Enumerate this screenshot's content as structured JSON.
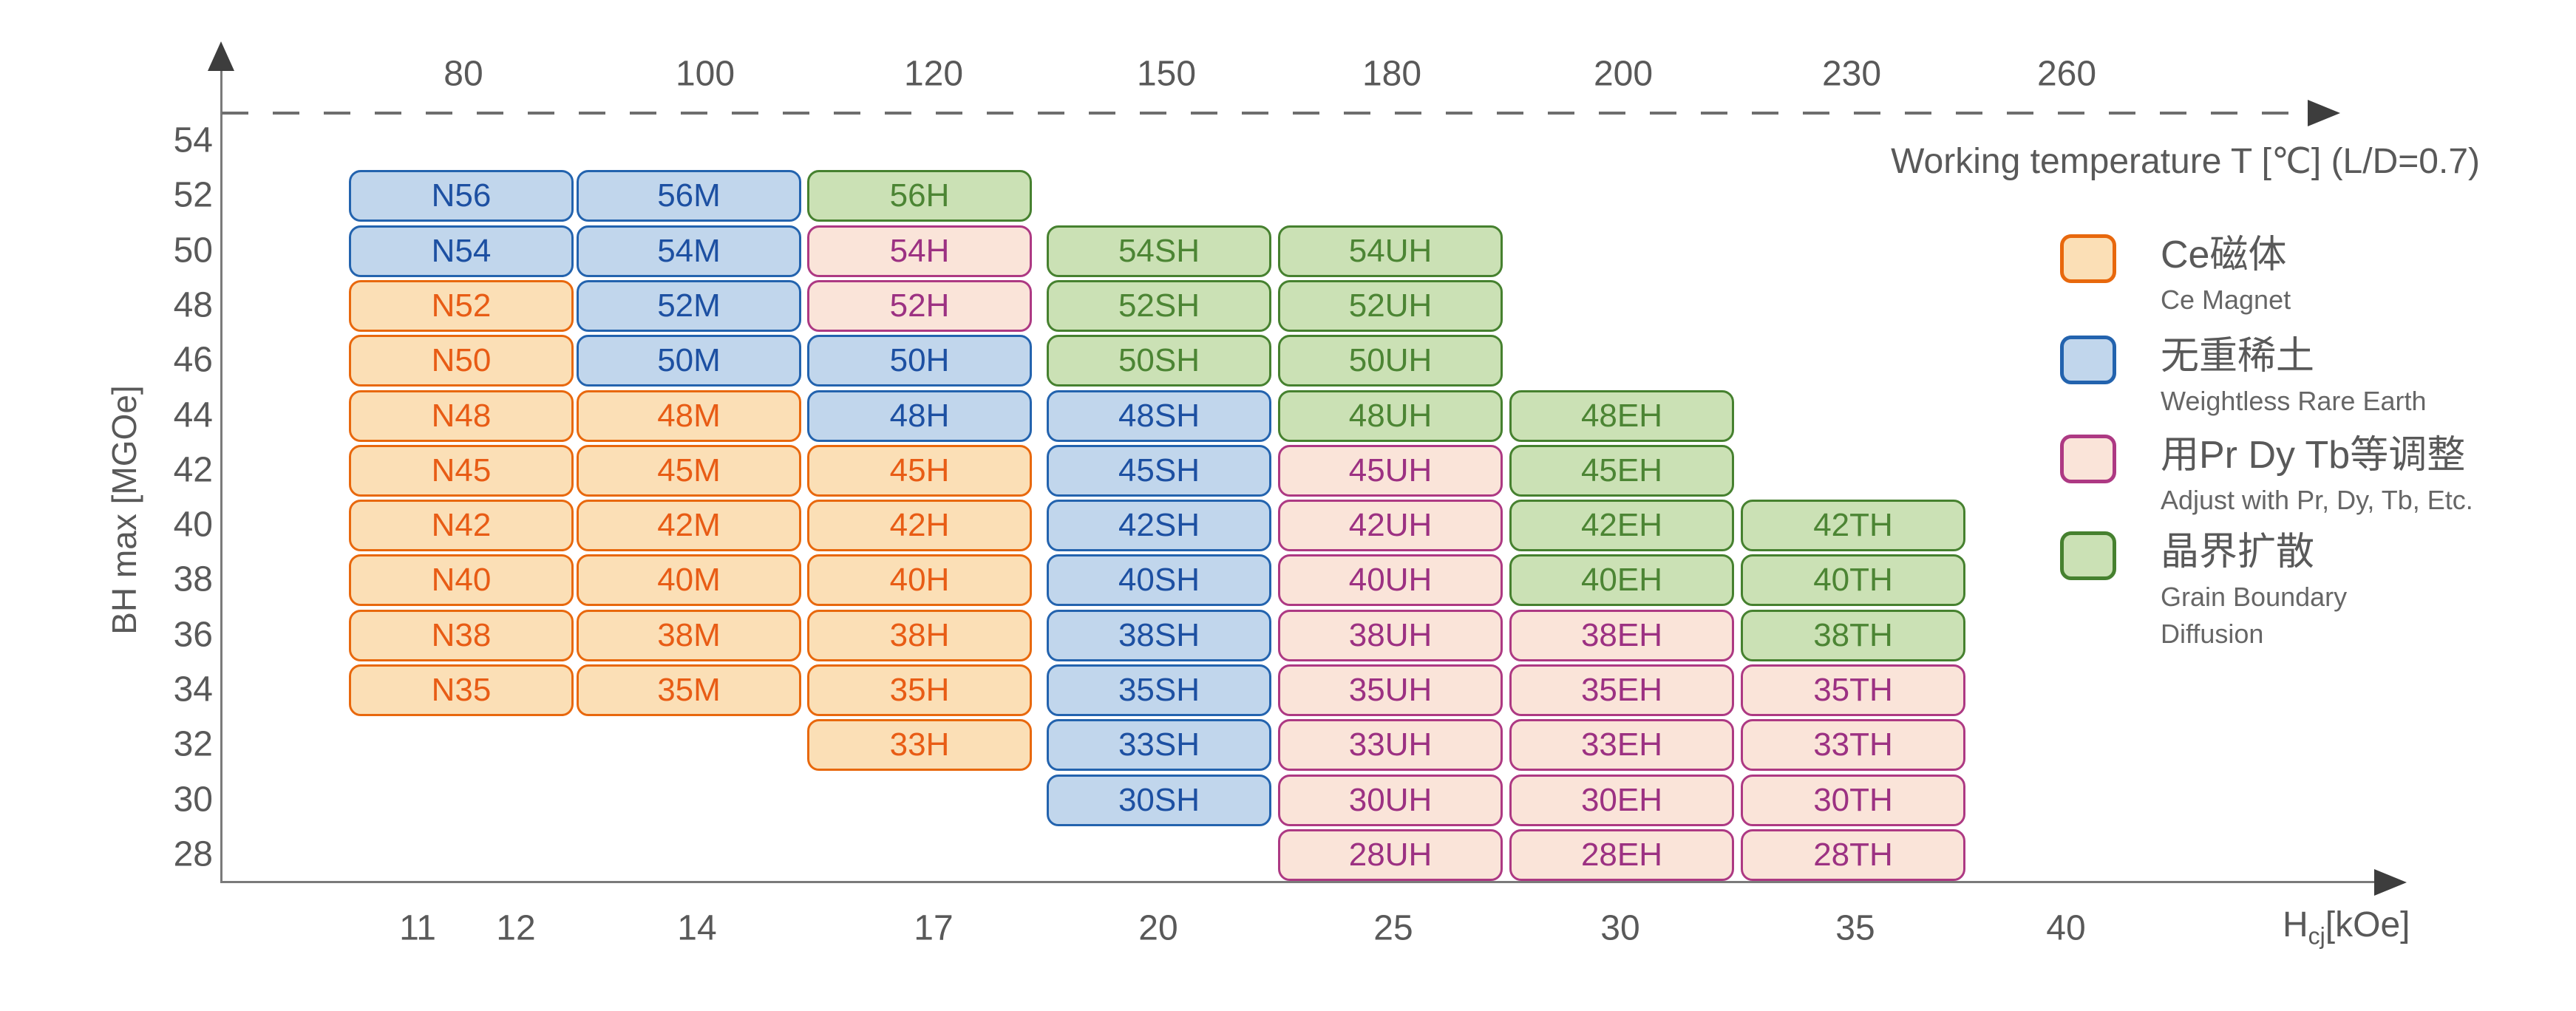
{
  "chart_data": {
    "type": "heatmap",
    "title": "",
    "x_axis_top": {
      "label": "Working temperature T [℃] (L/D=0.7)",
      "ticks": [
        80,
        100,
        120,
        150,
        180,
        200,
        230,
        260
      ]
    },
    "x_axis_bottom": {
      "label_main": "H",
      "label_sub": "cj",
      "label_unit": "[kOe]",
      "ticks": [
        11,
        12,
        14,
        17,
        20,
        25,
        30,
        35,
        40
      ]
    },
    "y_axis": {
      "label": "BH max [MGOe]",
      "ticks": [
        54,
        52,
        50,
        48,
        46,
        44,
        42,
        40,
        38,
        36,
        34,
        32,
        30,
        28
      ],
      "range": [
        28,
        54
      ]
    },
    "columns": [
      "N",
      "M",
      "H",
      "SH",
      "UH",
      "EH",
      "TH"
    ],
    "rows": [
      {
        "bh_max_range": "52-54",
        "cells": [
          {
            "label": "N56",
            "col": 0,
            "cat": "nre"
          },
          {
            "label": "56M",
            "col": 1,
            "cat": "nre"
          },
          {
            "label": "56H",
            "col": 2,
            "cat": "gbd"
          }
        ]
      },
      {
        "bh_max_range": "50-52",
        "cells": [
          {
            "label": "N54",
            "col": 0,
            "cat": "nre"
          },
          {
            "label": "54M",
            "col": 1,
            "cat": "nre"
          },
          {
            "label": "54H",
            "col": 2,
            "cat": "adj"
          },
          {
            "label": "54SH",
            "col": 3,
            "cat": "gbd"
          },
          {
            "label": "54UH",
            "col": 4,
            "cat": "gbd"
          }
        ]
      },
      {
        "bh_max_range": "48-50",
        "cells": [
          {
            "label": "N52",
            "col": 0,
            "cat": "ce"
          },
          {
            "label": "52M",
            "col": 1,
            "cat": "nre"
          },
          {
            "label": "52H",
            "col": 2,
            "cat": "adj"
          },
          {
            "label": "52SH",
            "col": 3,
            "cat": "gbd"
          },
          {
            "label": "52UH",
            "col": 4,
            "cat": "gbd"
          }
        ]
      },
      {
        "bh_max_range": "46-48",
        "cells": [
          {
            "label": "N50",
            "col": 0,
            "cat": "ce"
          },
          {
            "label": "50M",
            "col": 1,
            "cat": "nre"
          },
          {
            "label": "50H",
            "col": 2,
            "cat": "nre"
          },
          {
            "label": "50SH",
            "col": 3,
            "cat": "gbd"
          },
          {
            "label": "50UH",
            "col": 4,
            "cat": "gbd"
          }
        ]
      },
      {
        "bh_max_range": "44-46",
        "cells": [
          {
            "label": "N48",
            "col": 0,
            "cat": "ce"
          },
          {
            "label": "48M",
            "col": 1,
            "cat": "ce"
          },
          {
            "label": "48H",
            "col": 2,
            "cat": "nre"
          },
          {
            "label": "48SH",
            "col": 3,
            "cat": "nre"
          },
          {
            "label": "48UH",
            "col": 4,
            "cat": "gbd"
          },
          {
            "label": "48EH",
            "col": 5,
            "cat": "gbd"
          }
        ]
      },
      {
        "bh_max_range": "42-44",
        "cells": [
          {
            "label": "N45",
            "col": 0,
            "cat": "ce"
          },
          {
            "label": "45M",
            "col": 1,
            "cat": "ce"
          },
          {
            "label": "45H",
            "col": 2,
            "cat": "ce"
          },
          {
            "label": "45SH",
            "col": 3,
            "cat": "nre"
          },
          {
            "label": "45UH",
            "col": 4,
            "cat": "adj"
          },
          {
            "label": "45EH",
            "col": 5,
            "cat": "gbd"
          }
        ]
      },
      {
        "bh_max_range": "40-42",
        "cells": [
          {
            "label": "N42",
            "col": 0,
            "cat": "ce"
          },
          {
            "label": "42M",
            "col": 1,
            "cat": "ce"
          },
          {
            "label": "42H",
            "col": 2,
            "cat": "ce"
          },
          {
            "label": "42SH",
            "col": 3,
            "cat": "nre"
          },
          {
            "label": "42UH",
            "col": 4,
            "cat": "adj"
          },
          {
            "label": "42EH",
            "col": 5,
            "cat": "gbd"
          },
          {
            "label": "42TH",
            "col": 6,
            "cat": "gbd"
          }
        ]
      },
      {
        "bh_max_range": "38-40",
        "cells": [
          {
            "label": "N40",
            "col": 0,
            "cat": "ce"
          },
          {
            "label": "40M",
            "col": 1,
            "cat": "ce"
          },
          {
            "label": "40H",
            "col": 2,
            "cat": "ce"
          },
          {
            "label": "40SH",
            "col": 3,
            "cat": "nre"
          },
          {
            "label": "40UH",
            "col": 4,
            "cat": "adj"
          },
          {
            "label": "40EH",
            "col": 5,
            "cat": "gbd"
          },
          {
            "label": "40TH",
            "col": 6,
            "cat": "gbd"
          }
        ]
      },
      {
        "bh_max_range": "36-38",
        "cells": [
          {
            "label": "N38",
            "col": 0,
            "cat": "ce"
          },
          {
            "label": "38M",
            "col": 1,
            "cat": "ce"
          },
          {
            "label": "38H",
            "col": 2,
            "cat": "ce"
          },
          {
            "label": "38SH",
            "col": 3,
            "cat": "nre"
          },
          {
            "label": "38UH",
            "col": 4,
            "cat": "adj"
          },
          {
            "label": "38EH",
            "col": 5,
            "cat": "adj"
          },
          {
            "label": "38TH",
            "col": 6,
            "cat": "gbd"
          }
        ]
      },
      {
        "bh_max_range": "34-36",
        "cells": [
          {
            "label": "N35",
            "col": 0,
            "cat": "ce"
          },
          {
            "label": "35M",
            "col": 1,
            "cat": "ce"
          },
          {
            "label": "35H",
            "col": 2,
            "cat": "ce"
          },
          {
            "label": "35SH",
            "col": 3,
            "cat": "nre"
          },
          {
            "label": "35UH",
            "col": 4,
            "cat": "adj"
          },
          {
            "label": "35EH",
            "col": 5,
            "cat": "adj"
          },
          {
            "label": "35TH",
            "col": 6,
            "cat": "adj"
          }
        ]
      },
      {
        "bh_max_range": "32-34",
        "cells": [
          {
            "label": "33H",
            "col": 2,
            "cat": "ce"
          },
          {
            "label": "33SH",
            "col": 3,
            "cat": "nre"
          },
          {
            "label": "33UH",
            "col": 4,
            "cat": "adj"
          },
          {
            "label": "33EH",
            "col": 5,
            "cat": "adj"
          },
          {
            "label": "33TH",
            "col": 6,
            "cat": "adj"
          }
        ]
      },
      {
        "bh_max_range": "30-32",
        "cells": [
          {
            "label": "30SH",
            "col": 3,
            "cat": "nre"
          },
          {
            "label": "30UH",
            "col": 4,
            "cat": "adj"
          },
          {
            "label": "30EH",
            "col": 5,
            "cat": "adj"
          },
          {
            "label": "30TH",
            "col": 6,
            "cat": "adj"
          }
        ]
      },
      {
        "bh_max_range": "28-30",
        "cells": [
          {
            "label": "28UH",
            "col": 4,
            "cat": "adj"
          },
          {
            "label": "28EH",
            "col": 5,
            "cat": "adj"
          },
          {
            "label": "28TH",
            "col": 6,
            "cat": "adj"
          }
        ]
      }
    ]
  },
  "legend": {
    "items": [
      {
        "key": "ce",
        "zh": "Ce磁体",
        "en": "Ce Magnet",
        "colors": {
          "fill": "#FBDFB6",
          "border": "#E8680D",
          "text": "#E85C15"
        }
      },
      {
        "key": "nre",
        "zh": "无重稀土",
        "en": "Weightless Rare Earth",
        "colors": {
          "fill": "#C1D6EC",
          "border": "#2363AE",
          "text": "#1D50A2"
        }
      },
      {
        "key": "adj",
        "zh": "用Pr Dy Tb等调整",
        "en": "Adjust with Pr, Dy, Tb, Etc.",
        "colors": {
          "fill": "#FAE4D9",
          "border": "#AD3983",
          "text": "#9C3182"
        }
      },
      {
        "key": "gbd",
        "zh": "晶界扩散",
        "en": "Grain Boundary\nDiffusion",
        "colors": {
          "fill": "#CBE1B5",
          "border": "#46812F",
          "text": "#4C8534"
        }
      }
    ]
  }
}
